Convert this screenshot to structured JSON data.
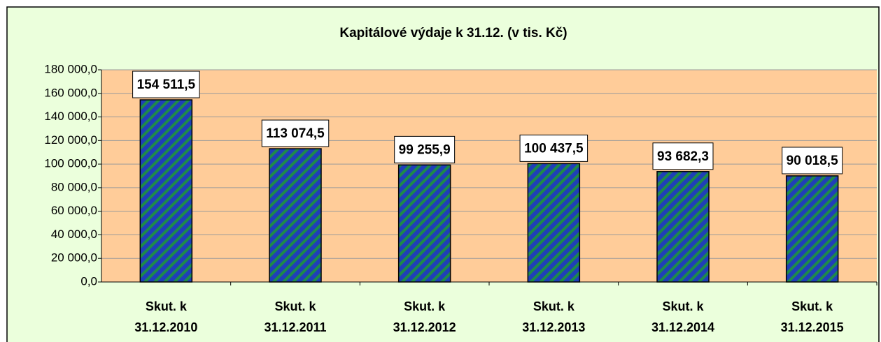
{
  "chart_data": {
    "type": "bar",
    "title": "Kapitálové výdaje k 31.12. (v tis. Kč)",
    "categories": [
      [
        "Skut. k",
        "31.12.2010"
      ],
      [
        "Skut. k",
        "31.12.2011"
      ],
      [
        "Skut. k",
        "31.12.2012"
      ],
      [
        "Skut. k",
        "31.12.2013"
      ],
      [
        "Skut. k",
        "31.12.2014"
      ],
      [
        "Skut. k",
        "31.12.2015"
      ]
    ],
    "values": [
      154511.5,
      113074.5,
      99255.9,
      100437.5,
      93682.3,
      90018.5
    ],
    "value_labels": [
      "154 511,5",
      "113 074,5",
      "99 255,9",
      "100 437,5",
      "93 682,3",
      "90 018,5"
    ],
    "color": "#1f3fb8",
    "ylim": [
      0,
      180000
    ],
    "yticks": [
      {
        "value": 0,
        "label": "0,0"
      },
      {
        "value": 20000,
        "label": "20 000,0"
      },
      {
        "value": 40000,
        "label": "40 000,0"
      },
      {
        "value": 60000,
        "label": "60 000,0"
      },
      {
        "value": 80000,
        "label": "80 000,0"
      },
      {
        "value": 100000,
        "label": "100 000,0"
      },
      {
        "value": 120000,
        "label": "120 000,0"
      },
      {
        "value": 140000,
        "label": "140 000,0"
      },
      {
        "value": 160000,
        "label": "160 000,0"
      },
      {
        "value": 180000,
        "label": "180 000,0"
      }
    ],
    "grid": true
  }
}
